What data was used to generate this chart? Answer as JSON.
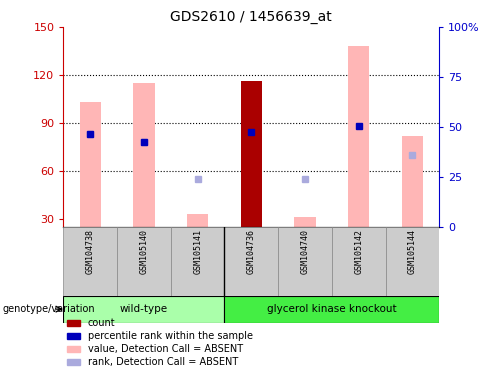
{
  "title": "GDS2610 / 1456639_at",
  "samples": [
    "GSM104738",
    "GSM105140",
    "GSM105141",
    "GSM104736",
    "GSM104740",
    "GSM105142",
    "GSM105144"
  ],
  "wt_group": [
    "GSM104738",
    "GSM105140",
    "GSM105141"
  ],
  "gk_group": [
    "GSM104736",
    "GSM104740",
    "GSM105142",
    "GSM105144"
  ],
  "ylim_left": [
    25,
    150
  ],
  "ylim_right": [
    0,
    100
  ],
  "yticks_left": [
    30,
    60,
    90,
    120,
    150
  ],
  "yticks_right": [
    0,
    25,
    50,
    75,
    100
  ],
  "bar_color_absent": "#FFB6B6",
  "bar_color_count": "#AA0000",
  "rank_absent_color": "#AAAADD",
  "percentile_color": "#0000BB",
  "wt_color": "#AAFFAA",
  "gk_color": "#44EE44",
  "left_axis_color": "#CC0000",
  "right_axis_color": "#0000CC",
  "sample_box_color": "#CCCCCC",
  "values_absent": [
    103,
    115,
    33,
    116,
    31,
    138,
    82
  ],
  "ranks_absent": [
    83,
    78,
    55,
    null,
    55,
    null,
    70
  ],
  "counts": [
    null,
    null,
    null,
    116,
    null,
    null,
    null
  ],
  "percentile_ranks": [
    83,
    78,
    null,
    84,
    null,
    88,
    null
  ],
  "sample_has_count": [
    false,
    false,
    false,
    true,
    false,
    false,
    false
  ],
  "sample_detection_absent": [
    true,
    true,
    true,
    false,
    true,
    true,
    true
  ],
  "legend_items": [
    {
      "label": "count",
      "color": "#AA0000",
      "shape": "square"
    },
    {
      "label": "percentile rank within the sample",
      "color": "#0000BB",
      "shape": "square"
    },
    {
      "label": "value, Detection Call = ABSENT",
      "color": "#FFB6B6",
      "shape": "square"
    },
    {
      "label": "rank, Detection Call = ABSENT",
      "color": "#AAAADD",
      "shape": "square"
    }
  ]
}
